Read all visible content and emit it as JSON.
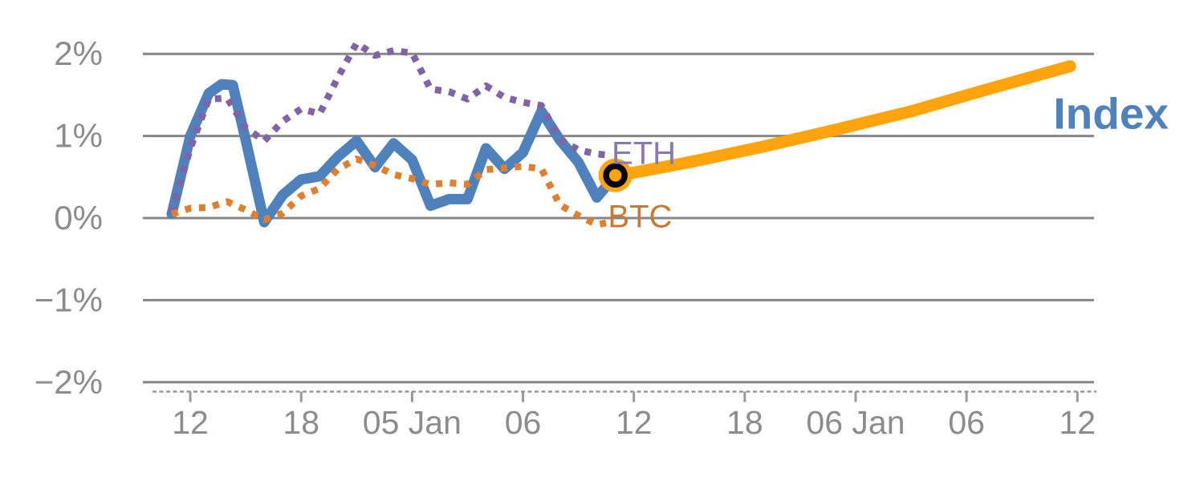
{
  "chart_data": {
    "type": "line",
    "title": "",
    "xlabel": "",
    "ylabel": "",
    "description": "Hourly percent-return chart: dotted purple ETH, dotted orange BTC, thick blue Index history ending at a black open-circle marker, and a thick bright-orange Index forecast line rising to about 1.85%",
    "x_unit": "hours, one tick every 6 hours",
    "xlim_hours": [
      -1.565,
      49.9
    ],
    "ylim_pct": [
      -2.35,
      2.4
    ],
    "grid": "horizontal solid gray lines at each labeled percent",
    "legend_position": "inline-labels-on-chart",
    "axis_colors": {
      "grid": "#878787",
      "axis_dash": "#999999",
      "tick": "#999999",
      "tick_text": "#8C8C8C"
    },
    "yticks": [
      {
        "v": 2,
        "label": "2%"
      },
      {
        "v": 1,
        "label": "1%"
      },
      {
        "v": 0,
        "label": "0%"
      },
      {
        "v": -1,
        "label": "−1%"
      },
      {
        "v": -2,
        "label": "−2%"
      }
    ],
    "xticks": [
      {
        "t": 1,
        "label": "12"
      },
      {
        "t": 7,
        "label": "18"
      },
      {
        "t": 13,
        "label": "05 Jan"
      },
      {
        "t": 19,
        "label": "06"
      },
      {
        "t": 25,
        "label": "12"
      },
      {
        "t": 31,
        "label": "18"
      },
      {
        "t": 37,
        "label": "06 Jan"
      },
      {
        "t": 43,
        "label": "06"
      },
      {
        "t": 49,
        "label": "12"
      }
    ],
    "series": [
      {
        "name": "ETH",
        "color": "#8064A6",
        "style": "dotted",
        "width": 8.5,
        "points": [
          [
            0,
            0.06
          ],
          [
            1,
            0.85
          ],
          [
            2,
            1.45
          ],
          [
            3,
            1.46
          ],
          [
            4,
            1.1
          ],
          [
            5,
            0.94
          ],
          [
            6,
            1.18
          ],
          [
            7,
            1.33
          ],
          [
            8,
            1.27
          ],
          [
            9,
            1.72
          ],
          [
            10,
            2.13
          ],
          [
            11,
            1.98
          ],
          [
            12,
            2.04
          ],
          [
            13,
            2.01
          ],
          [
            14,
            1.57
          ],
          [
            15,
            1.54
          ],
          [
            16,
            1.45
          ],
          [
            17,
            1.61
          ],
          [
            18,
            1.47
          ],
          [
            19,
            1.41
          ],
          [
            20,
            1.37
          ],
          [
            21,
            0.96
          ],
          [
            22,
            0.83
          ],
          [
            23,
            0.78
          ],
          [
            23.5,
            0.77
          ]
        ]
      },
      {
        "name": "BTC",
        "color": "#E07F2E",
        "style": "dotted",
        "width": 8.5,
        "points": [
          [
            0,
            0.05
          ],
          [
            1,
            0.12
          ],
          [
            2,
            0.13
          ],
          [
            3,
            0.2
          ],
          [
            4,
            0.1
          ],
          [
            5,
            -0.02
          ],
          [
            6,
            0.06
          ],
          [
            7,
            0.27
          ],
          [
            8,
            0.36
          ],
          [
            9,
            0.6
          ],
          [
            10,
            0.72
          ],
          [
            11,
            0.64
          ],
          [
            12,
            0.53
          ],
          [
            13,
            0.48
          ],
          [
            14,
            0.41
          ],
          [
            15,
            0.43
          ],
          [
            16,
            0.41
          ],
          [
            17,
            0.59
          ],
          [
            18,
            0.61
          ],
          [
            19,
            0.63
          ],
          [
            20,
            0.6
          ],
          [
            21,
            0.16
          ],
          [
            22,
            0.03
          ],
          [
            23,
            -0.08
          ],
          [
            23.5,
            -0.06
          ]
        ]
      },
      {
        "name": "Index",
        "color": "#4F81BD",
        "style": "solid",
        "width": 13,
        "points": [
          [
            0,
            0.05
          ],
          [
            1,
            1.0
          ],
          [
            2,
            1.52
          ],
          [
            2.7,
            1.63
          ],
          [
            3.3,
            1.62
          ],
          [
            4,
            0.95
          ],
          [
            5,
            -0.05
          ],
          [
            6,
            0.28
          ],
          [
            7,
            0.47
          ],
          [
            8,
            0.51
          ],
          [
            9,
            0.75
          ],
          [
            10,
            0.94
          ],
          [
            11,
            0.62
          ],
          [
            12,
            0.91
          ],
          [
            13,
            0.71
          ],
          [
            14,
            0.15
          ],
          [
            15,
            0.23
          ],
          [
            16,
            0.23
          ],
          [
            17,
            0.85
          ],
          [
            18,
            0.6
          ],
          [
            19,
            0.8
          ],
          [
            20,
            1.3
          ],
          [
            21,
            0.95
          ],
          [
            22,
            0.68
          ],
          [
            23,
            0.25
          ],
          [
            24,
            0.52
          ]
        ]
      },
      {
        "name": "Index forecast",
        "color": "#FFA40D",
        "style": "solid",
        "width": 15,
        "points": [
          [
            24,
            0.51
          ],
          [
            28,
            0.68
          ],
          [
            32,
            0.87
          ],
          [
            36,
            1.08
          ],
          [
            40,
            1.3
          ],
          [
            44,
            1.56
          ],
          [
            48.6,
            1.85
          ]
        ]
      }
    ],
    "marker": {
      "name": "last-actual-point",
      "t": 24,
      "v": 0.52,
      "shape": "open-circle",
      "ring_color": "#000000",
      "halo_color": "#FFA40D"
    },
    "labels": [
      {
        "text": "ETH",
        "color": "#8878B4",
        "t": 23.8,
        "v": 0.66,
        "size": 40,
        "weight": "normal"
      },
      {
        "text": "BTC",
        "color": "#C87933",
        "t": 23.6,
        "v": -0.11,
        "size": 40,
        "weight": "normal"
      },
      {
        "text": "Index",
        "color": "#4F81BD",
        "t": 47.7,
        "v": 1.09,
        "size": 55,
        "weight": "bold"
      }
    ]
  }
}
